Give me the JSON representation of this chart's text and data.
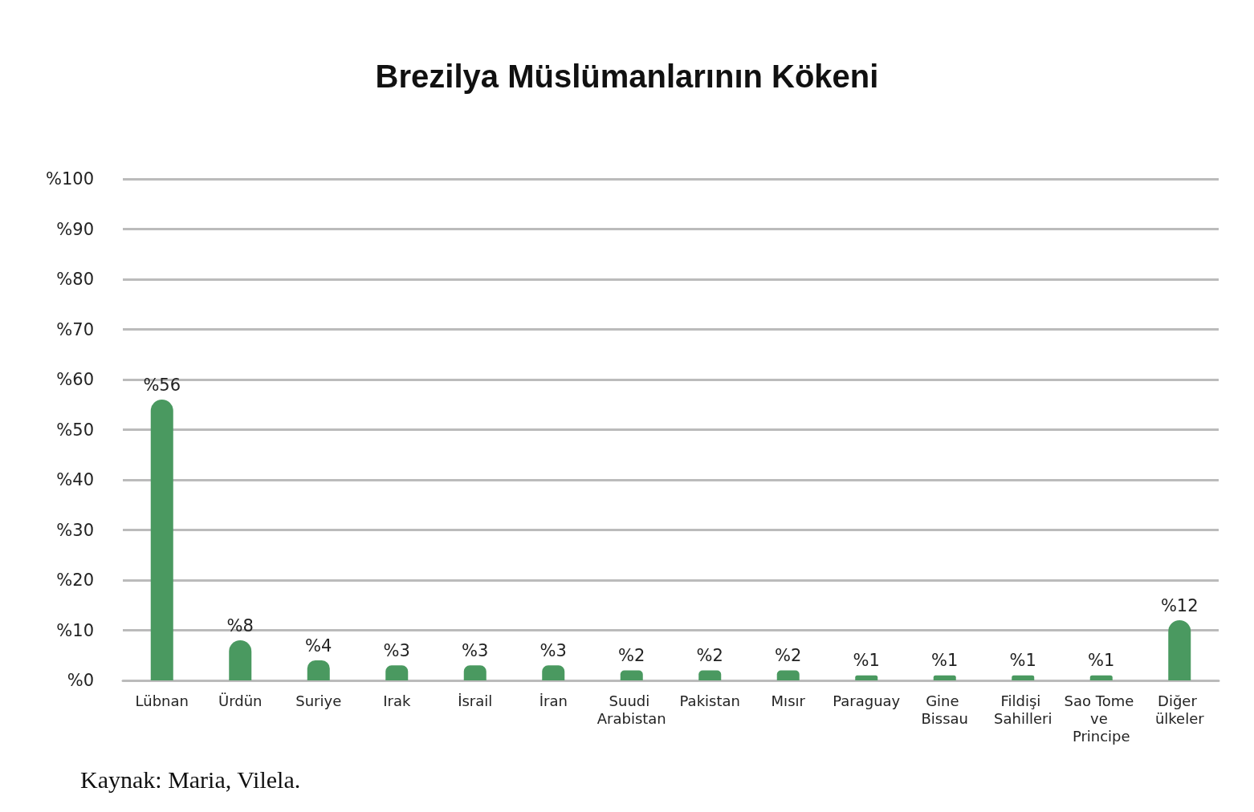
{
  "chart_data": {
    "type": "bar",
    "title": "Brezilya Müslümanlarının Kökeni",
    "categories": [
      "Lübnan",
      "Ürdün",
      "Suriye",
      "Irak",
      "İsrail",
      "İran",
      "Suudi Arabistan",
      "Pakistan",
      "Mısır",
      "Paraguay",
      "Gine Bissau",
      "Fildişi Sahilleri",
      "Sao Tome ve Principe",
      "Diğer ülkeler"
    ],
    "values": [
      56,
      8,
      4,
      3,
      3,
      3,
      2,
      2,
      2,
      1,
      1,
      1,
      1,
      12
    ],
    "value_labels": [
      "%56",
      "%8",
      "%4",
      "%3",
      "%3",
      "%3",
      "%2",
      "%2",
      "%2",
      "%1",
      "%1",
      "%1",
      "%1",
      "%12"
    ],
    "color": "#4a9960",
    "ylim": [
      0,
      100
    ],
    "yticks": [
      {
        "value": 0,
        "label": "%0"
      },
      {
        "value": 10,
        "label": "%10"
      },
      {
        "value": 20,
        "label": "%20"
      },
      {
        "value": 30,
        "label": "%30"
      },
      {
        "value": 40,
        "label": "%40"
      },
      {
        "value": 50,
        "label": "%50"
      },
      {
        "value": 60,
        "label": "%60"
      },
      {
        "value": 70,
        "label": "%70"
      },
      {
        "value": 80,
        "label": "%80"
      },
      {
        "value": 90,
        "label": "%90"
      },
      {
        "value": 100,
        "label": "%100"
      }
    ],
    "grid": "y",
    "annotations": [
      "Kaynak: Maria, Vilela."
    ]
  }
}
